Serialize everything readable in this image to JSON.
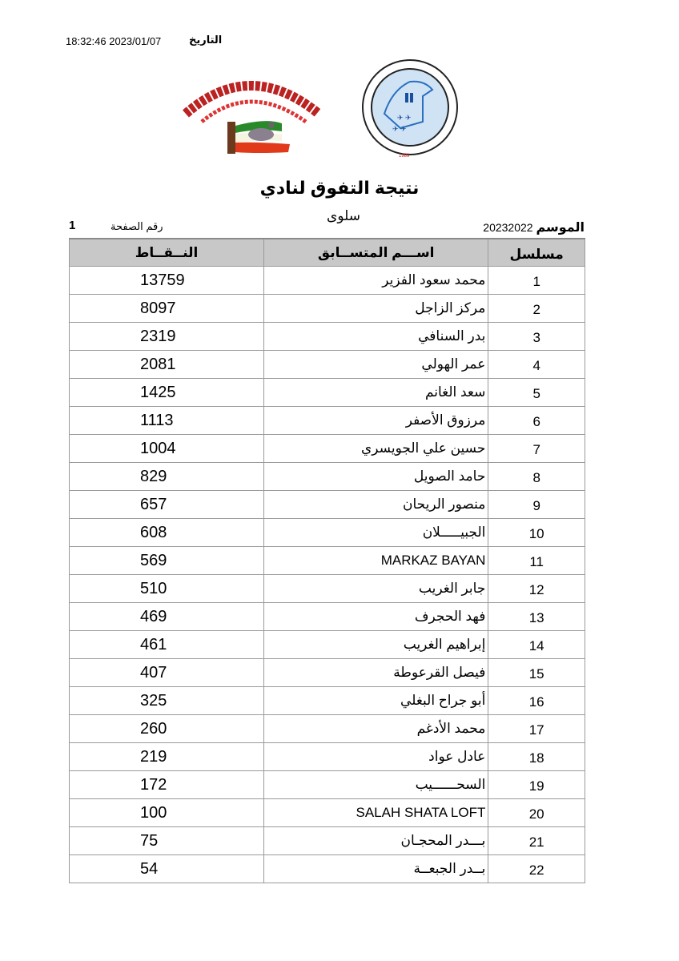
{
  "header": {
    "date_label": "التاريخ",
    "datetime": "18:32:46 2023/01/07"
  },
  "logos": {
    "club": {
      "text_ar": "النادي الكويتي لسباق الحمام الزاجل",
      "text_en": "Kuwait Racing Pigeon Club"
    },
    "federation": {
      "text_ar": "الاتحاد الكويتي لسباق حمام الزاجل",
      "text_en": "Kuwait Federation For Racing Pigeons",
      "year": "1989"
    }
  },
  "title": "نتيجة التفوق لنادي",
  "subtitle": "سلوى",
  "season": {
    "label": "الموسم",
    "value": "20232022"
  },
  "page": {
    "label": "رقم الصفحة",
    "number": "1"
  },
  "table": {
    "headers": {
      "serial": "مسلسل",
      "name": "اســـم المتســابق",
      "points": "النــقــاط"
    },
    "rows": [
      {
        "serial": "1",
        "name": "محمد سعود الفزير",
        "points": "13759"
      },
      {
        "serial": "2",
        "name": "مركز الزاجل",
        "points": "8097"
      },
      {
        "serial": "3",
        "name": "بدر السنافي",
        "points": "2319"
      },
      {
        "serial": "4",
        "name": "عمر الهولي",
        "points": "2081"
      },
      {
        "serial": "5",
        "name": "سعد الغانم",
        "points": "1425"
      },
      {
        "serial": "6",
        "name": "مرزوق الأصفر",
        "points": "1113"
      },
      {
        "serial": "7",
        "name": "حسين علي الجويسري",
        "points": "1004"
      },
      {
        "serial": "8",
        "name": "حامد الصويل",
        "points": "829"
      },
      {
        "serial": "9",
        "name": "منصور الريحان",
        "points": "657"
      },
      {
        "serial": "10",
        "name": "الجبيـــــلان",
        "points": "608"
      },
      {
        "serial": "11",
        "name": "MARKAZ BAYAN",
        "points": "569"
      },
      {
        "serial": "12",
        "name": "جابر الغريب",
        "points": "510"
      },
      {
        "serial": "13",
        "name": "فهد الحجرف",
        "points": "469"
      },
      {
        "serial": "14",
        "name": "إبراهيم الغريب",
        "points": "461"
      },
      {
        "serial": "15",
        "name": "فيصل القرعوطة",
        "points": "407"
      },
      {
        "serial": "16",
        "name": "أبو جراح البغلي",
        "points": "325"
      },
      {
        "serial": "17",
        "name": "محمد الأدغم",
        "points": "260"
      },
      {
        "serial": "18",
        "name": "عادل عواد",
        "points": "219"
      },
      {
        "serial": "19",
        "name": "السحــــــيب",
        "points": "172"
      },
      {
        "serial": "20",
        "name": "SALAH SHATA LOFT",
        "points": "100"
      },
      {
        "serial": "21",
        "name": "بـــدر المحجـان",
        "points": "75"
      },
      {
        "serial": "22",
        "name": "بــدر الجبعــة",
        "points": "54"
      }
    ]
  }
}
